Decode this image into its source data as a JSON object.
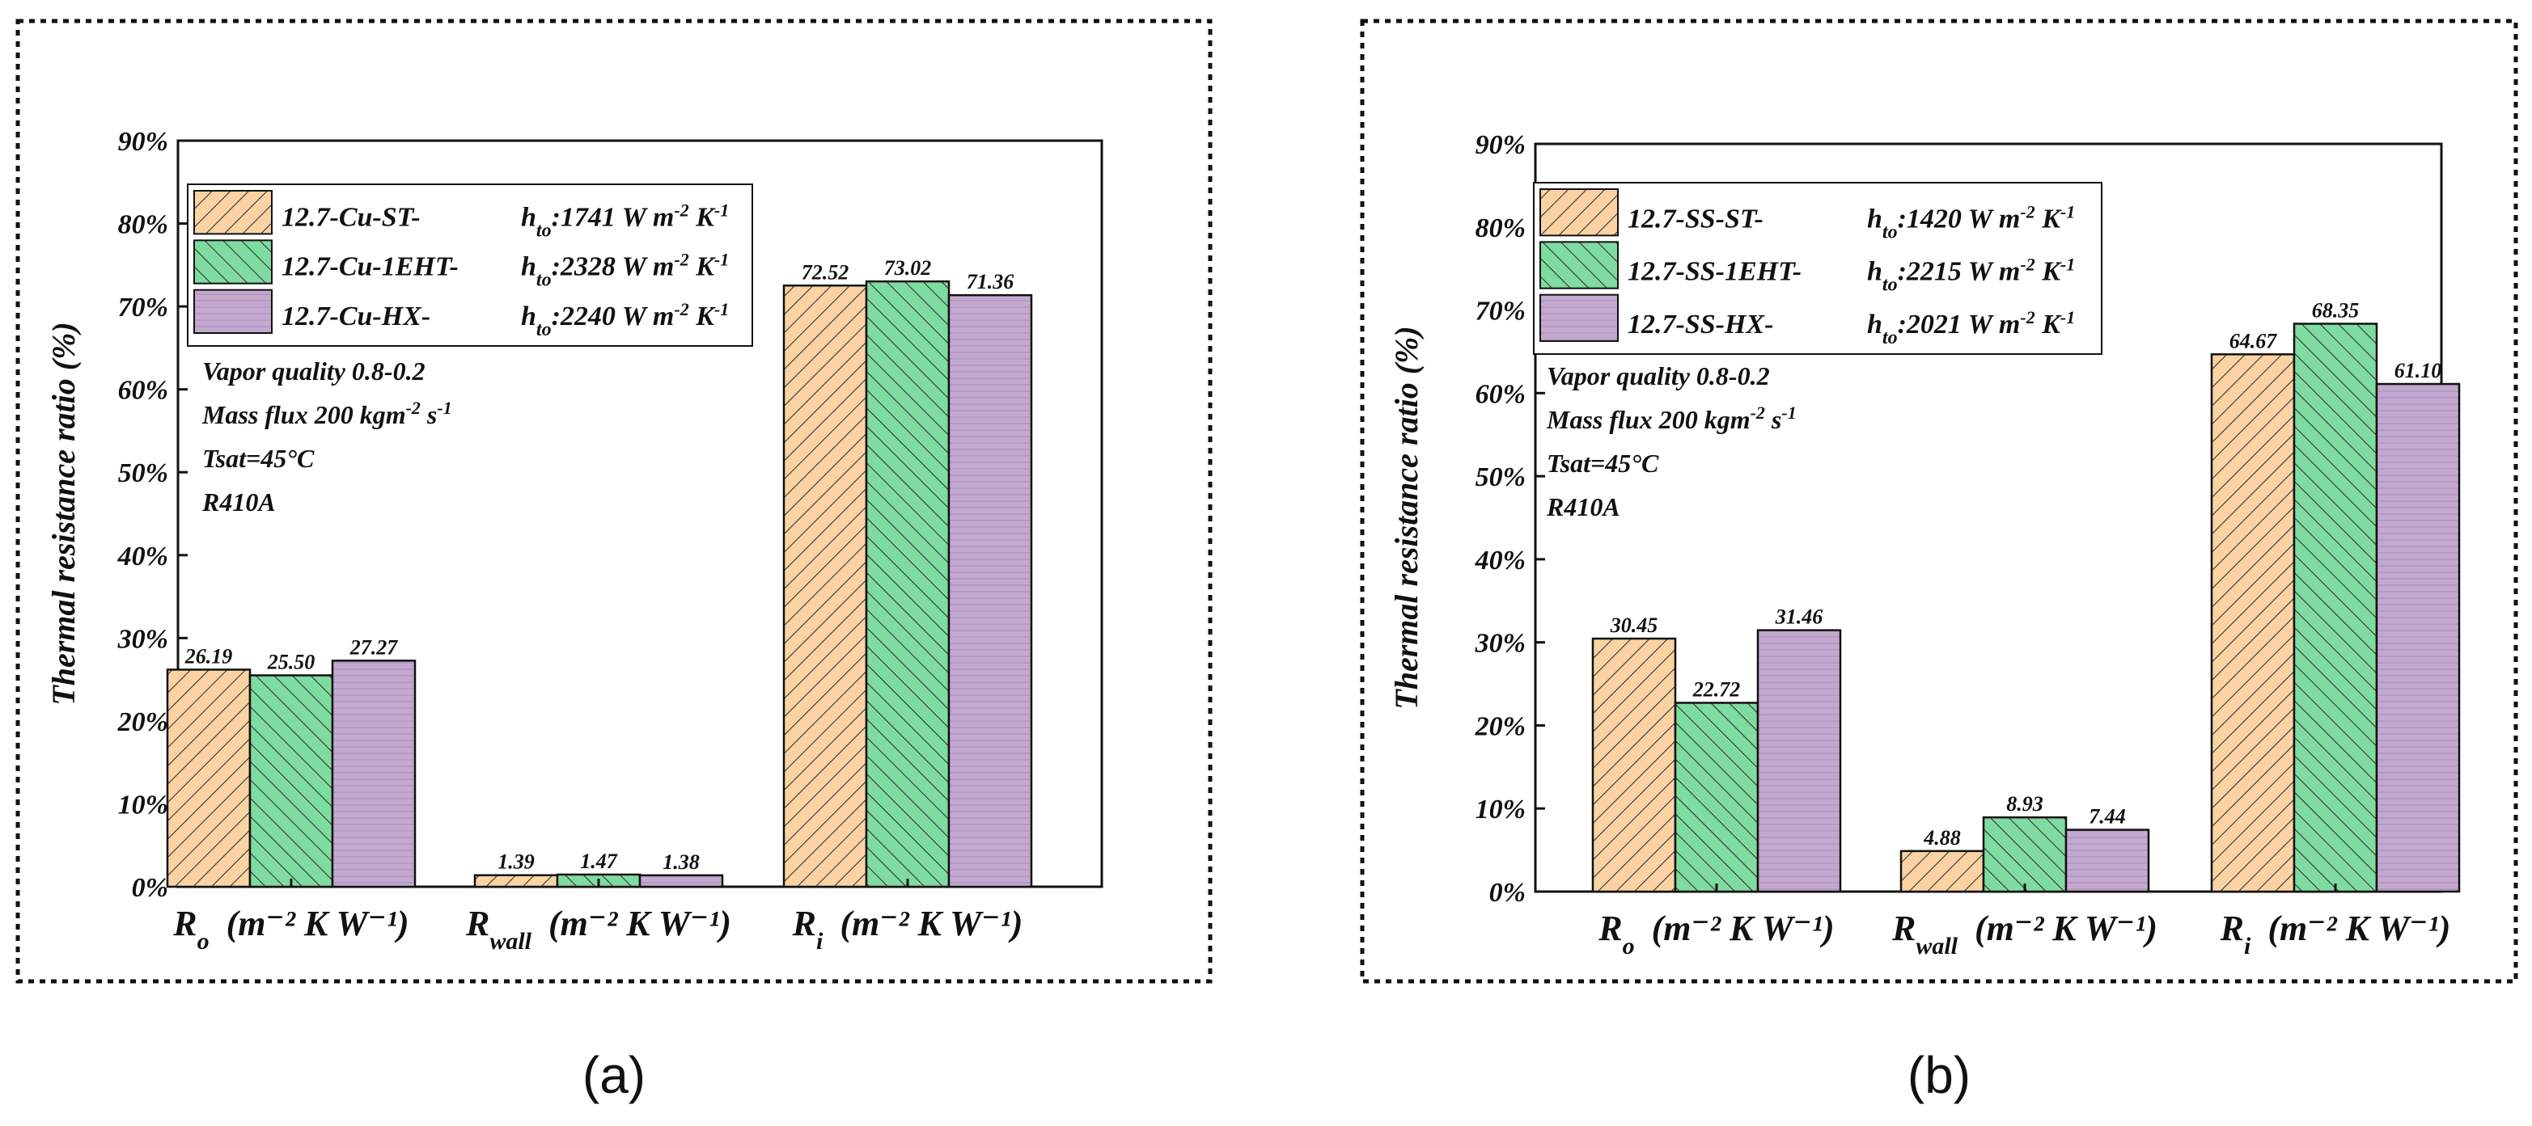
{
  "colors": {
    "series": [
      "#fbd3a2",
      "#7fdca0",
      "#c3a9cf"
    ],
    "frame": "#111111"
  },
  "panels": [
    {
      "label": "(a)",
      "annotations": [
        "Vapor quality 0.8-0.2",
        "Mass flux 200 kgm",
        "Tsat=45°C",
        "R410A"
      ],
      "legend": [
        {
          "name": "12.7-Cu-ST-",
          "hto": "1741"
        },
        {
          "name": "12.7-Cu-1EHT-",
          "hto": "2328"
        },
        {
          "name": "12.7-Cu-HX-",
          "hto": "2240"
        }
      ]
    },
    {
      "label": "(b)",
      "annotations": [
        "Vapor quality 0.8-0.2",
        "Mass flux 200 kgm",
        "Tsat=45°C",
        "R410A"
      ],
      "legend": [
        {
          "name": "12.7-SS-ST-",
          "hto": "1420"
        },
        {
          "name": "12.7-SS-1EHT-",
          "hto": "2215"
        },
        {
          "name": "12.7-SS-HX-",
          "hto": "2021"
        }
      ]
    }
  ],
  "chart_data": [
    {
      "type": "bar",
      "ylabel": "Thermal resistance ratio (%)",
      "ylim": [
        0,
        90
      ],
      "yticks": [
        "0%",
        "10%",
        "20%",
        "30%",
        "40%",
        "50%",
        "60%",
        "70%",
        "80%",
        "90%"
      ],
      "categories": [
        {
          "main": "R",
          "sub": "o",
          "unit": "(m⁻² K W⁻¹)"
        },
        {
          "main": "R",
          "sub": "wall",
          "unit": "(m⁻² K W⁻¹)"
        },
        {
          "main": "R",
          "sub": "i",
          "unit": "(m⁻² K W⁻¹)"
        }
      ],
      "series": [
        {
          "values": [
            26.19,
            1.39,
            72.52
          ],
          "labels": [
            "26.19",
            "1.39",
            "72.52"
          ]
        },
        {
          "values": [
            25.5,
            1.47,
            73.02
          ],
          "labels": [
            "25.50",
            "1.47",
            "73.02"
          ]
        },
        {
          "values": [
            27.27,
            1.38,
            71.36
          ],
          "labels": [
            "27.27",
            "1.38",
            "71.36"
          ]
        }
      ],
      "legend": "top-left",
      "grid": false
    },
    {
      "type": "bar",
      "ylabel": "Thermal resistance ratio (%)",
      "ylim": [
        0,
        90
      ],
      "yticks": [
        "0%",
        "10%",
        "20%",
        "30%",
        "40%",
        "50%",
        "60%",
        "70%",
        "80%",
        "90%"
      ],
      "categories": [
        {
          "main": "R",
          "sub": "o",
          "unit": "(m⁻² K W⁻¹)"
        },
        {
          "main": "R",
          "sub": "wall",
          "unit": "(m⁻² K W⁻¹)"
        },
        {
          "main": "R",
          "sub": "i",
          "unit": "(m⁻² K W⁻¹)"
        }
      ],
      "series": [
        {
          "values": [
            30.45,
            4.88,
            64.67
          ],
          "labels": [
            "30.45",
            "4.88",
            "64.67"
          ]
        },
        {
          "values": [
            22.72,
            8.93,
            68.35
          ],
          "labels": [
            "22.72",
            "8.93",
            "68.35"
          ]
        },
        {
          "values": [
            31.46,
            7.44,
            61.1
          ],
          "labels": [
            "31.46",
            "7.44",
            "61.10"
          ]
        }
      ],
      "legend": "top-left",
      "grid": false
    }
  ]
}
